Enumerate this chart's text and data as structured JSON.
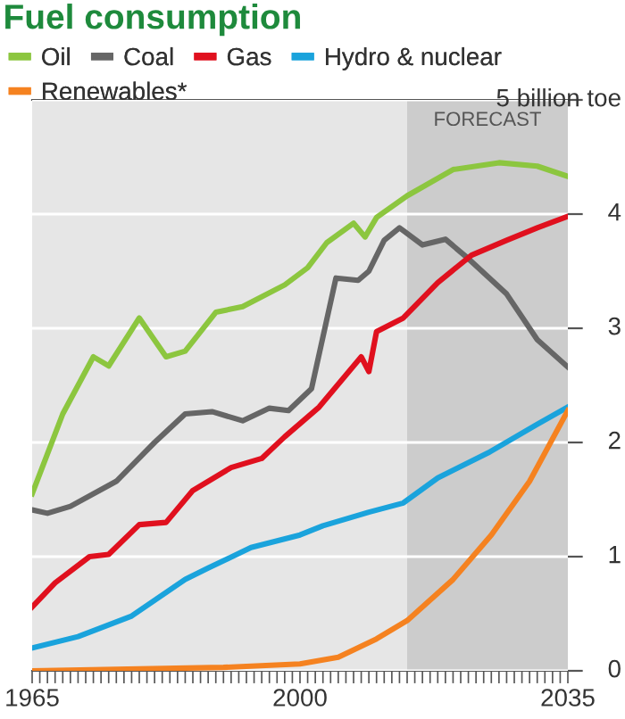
{
  "chart_data": {
    "type": "line",
    "title": "Fuel consumption",
    "series": [
      {
        "name": "Oil",
        "color": "#8cc63f",
        "x": [
          1965,
          1969,
          1973,
          1975,
          1979,
          1982.5,
          1985,
          1989,
          1992.5,
          1998,
          2001,
          2003.5,
          2007,
          2008.5,
          2010,
          2014,
          2020,
          2026,
          2031,
          2035
        ],
        "values": [
          1.55,
          2.25,
          2.75,
          2.67,
          3.09,
          2.75,
          2.8,
          3.14,
          3.19,
          3.38,
          3.53,
          3.75,
          3.92,
          3.8,
          3.97,
          4.16,
          4.39,
          4.45,
          4.42,
          4.33
        ]
      },
      {
        "name": "Coal",
        "color": "#666666",
        "x": [
          1965,
          1967,
          1970,
          1976,
          1981,
          1985,
          1988.5,
          1992.5,
          1996,
          1998.5,
          2001.5,
          2004.7,
          2007.6,
          2009,
          2011,
          2013,
          2016,
          2019,
          2022,
          2027,
          2031,
          2035
        ],
        "values": [
          1.41,
          1.38,
          1.44,
          1.66,
          2.0,
          2.25,
          2.27,
          2.19,
          2.3,
          2.28,
          2.47,
          3.44,
          3.42,
          3.5,
          3.77,
          3.88,
          3.73,
          3.78,
          3.61,
          3.3,
          2.9,
          2.66
        ]
      },
      {
        "name": "Gas",
        "color": "#e0101e",
        "x": [
          1965,
          1968,
          1972.5,
          1975,
          1979,
          1982.5,
          1986,
          1991,
          1995,
          1998,
          2002.5,
          2008,
          2009,
          2010,
          2013.5,
          2018,
          2022.4,
          2027,
          2031,
          2035
        ],
        "values": [
          0.56,
          0.77,
          1.0,
          1.02,
          1.28,
          1.3,
          1.58,
          1.78,
          1.86,
          2.05,
          2.31,
          2.75,
          2.62,
          2.97,
          3.09,
          3.4,
          3.64,
          3.77,
          3.88,
          3.98
        ]
      },
      {
        "name": "Hydro & nuclear",
        "color": "#1aa3dc",
        "x": [
          1965,
          1971,
          1978,
          1985,
          1988,
          1993.6,
          2000,
          2003,
          2009,
          2013.5,
          2018,
          2024.6,
          2031,
          2035
        ],
        "values": [
          0.2,
          0.3,
          0.48,
          0.8,
          0.9,
          1.08,
          1.19,
          1.27,
          1.39,
          1.47,
          1.69,
          1.91,
          2.16,
          2.31
        ]
      },
      {
        "name": "Renewables*",
        "color": "#f58220",
        "x": [
          1965,
          1990,
          2000,
          2005,
          2010,
          2014,
          2020,
          2025,
          2030,
          2035
        ],
        "values": [
          0.0,
          0.03,
          0.06,
          0.12,
          0.28,
          0.44,
          0.8,
          1.19,
          1.66,
          2.28
        ]
      }
    ],
    "xlim": [
      1965,
      2035
    ],
    "xticks": [
      {
        "value": 1965,
        "label": "1965"
      },
      {
        "value": 1966,
        "label": null
      },
      {
        "value": 1967,
        "label": null
      },
      {
        "value": 1968,
        "label": null
      },
      {
        "value": 1969,
        "label": null
      },
      {
        "value": 1970,
        "label": null
      },
      {
        "value": 1971,
        "label": null
      },
      {
        "value": 1972,
        "label": null
      },
      {
        "value": 1973,
        "label": null
      },
      {
        "value": 1974,
        "label": null
      },
      {
        "value": 1975,
        "label": null
      },
      {
        "value": 1976,
        "label": null
      },
      {
        "value": 1977,
        "label": null
      },
      {
        "value": 1978,
        "label": null
      },
      {
        "value": 1979,
        "label": null
      },
      {
        "value": 1980,
        "label": null
      },
      {
        "value": 1981,
        "label": null
      },
      {
        "value": 1982,
        "label": null
      },
      {
        "value": 1983,
        "label": null
      },
      {
        "value": 1984,
        "label": null
      },
      {
        "value": 1985,
        "label": null
      },
      {
        "value": 1986,
        "label": null
      },
      {
        "value": 1987,
        "label": null
      },
      {
        "value": 1988,
        "label": null
      },
      {
        "value": 1989,
        "label": null
      },
      {
        "value": 1990,
        "label": null
      },
      {
        "value": 1991,
        "label": null
      },
      {
        "value": 1992,
        "label": null
      },
      {
        "value": 1993,
        "label": null
      },
      {
        "value": 1994,
        "label": null
      },
      {
        "value": 1995,
        "label": null
      },
      {
        "value": 1996,
        "label": null
      },
      {
        "value": 1997,
        "label": null
      },
      {
        "value": 1998,
        "label": null
      },
      {
        "value": 1999,
        "label": null
      },
      {
        "value": 2000,
        "label": "2000"
      },
      {
        "value": 2001,
        "label": null
      },
      {
        "value": 2002,
        "label": null
      },
      {
        "value": 2003,
        "label": null
      },
      {
        "value": 2004,
        "label": null
      },
      {
        "value": 2005,
        "label": null
      },
      {
        "value": 2006,
        "label": null
      },
      {
        "value": 2007,
        "label": null
      },
      {
        "value": 2008,
        "label": null
      },
      {
        "value": 2009,
        "label": null
      },
      {
        "value": 2010,
        "label": null
      },
      {
        "value": 2011,
        "label": null
      },
      {
        "value": 2012,
        "label": null
      },
      {
        "value": 2013,
        "label": null
      },
      {
        "value": 2014,
        "label": null
      },
      {
        "value": 2015,
        "label": null
      },
      {
        "value": 2016,
        "label": null
      },
      {
        "value": 2017,
        "label": null
      },
      {
        "value": 2018,
        "label": null
      },
      {
        "value": 2019,
        "label": null
      },
      {
        "value": 2020,
        "label": null
      },
      {
        "value": 2021,
        "label": null
      },
      {
        "value": 2022,
        "label": null
      },
      {
        "value": 2023,
        "label": null
      },
      {
        "value": 2024,
        "label": null
      },
      {
        "value": 2025,
        "label": null
      },
      {
        "value": 2026,
        "label": null
      },
      {
        "value": 2027,
        "label": null
      },
      {
        "value": 2028,
        "label": null
      },
      {
        "value": 2029,
        "label": null
      },
      {
        "value": 2030,
        "label": null
      },
      {
        "value": 2031,
        "label": null
      },
      {
        "value": 2032,
        "label": null
      },
      {
        "value": 2033,
        "label": null
      },
      {
        "value": 2034,
        "label": null
      },
      {
        "value": 2035,
        "label": "2035"
      }
    ],
    "ylim": [
      0,
      5
    ],
    "yticks": [
      0,
      1,
      2,
      3,
      4,
      {
        "value": 5,
        "label": "5 billion toe"
      }
    ],
    "bands": [
      {
        "axis": "x",
        "from": 2014,
        "to": 2035,
        "label": "FORECAST",
        "color": "#cccccc"
      }
    ],
    "grid": "y",
    "legend": "top left",
    "line_style": "solid",
    "marker": "none"
  }
}
